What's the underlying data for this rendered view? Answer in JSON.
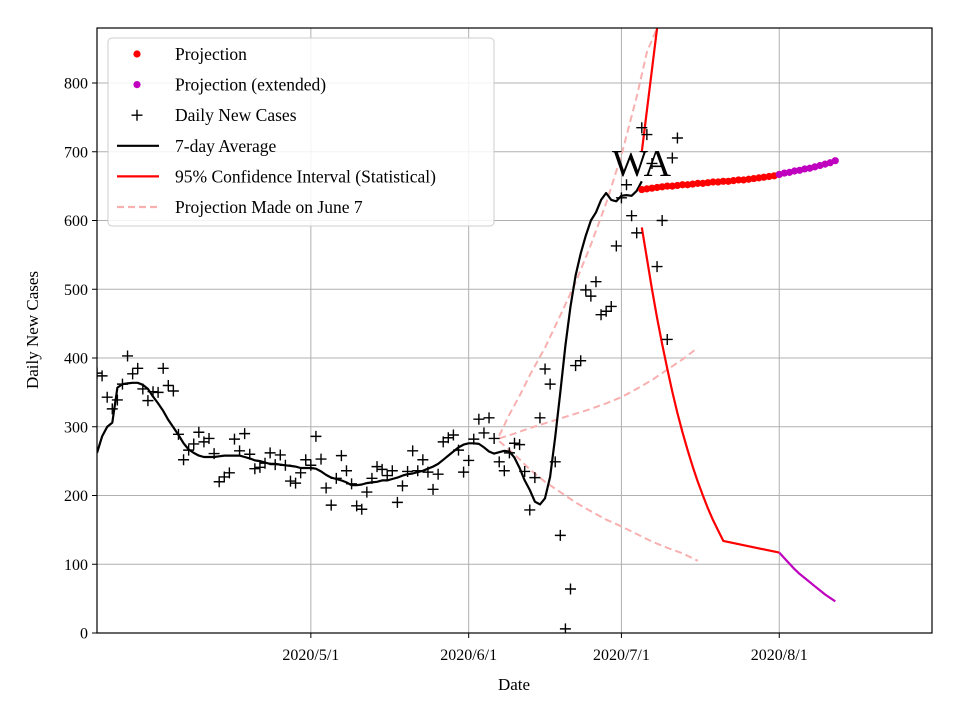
{
  "chart_data": {
    "type": "line",
    "title": "",
    "annotation": "WA",
    "xlabel": "Date",
    "ylabel": "Daily New Cases",
    "ylim": [
      0,
      880
    ],
    "x_start": "2020-03-20",
    "x_end": "2020-08-31",
    "xticks": [
      {
        "day": 42,
        "label": "2020/5/1"
      },
      {
        "day": 73,
        "label": "2020/6/1"
      },
      {
        "day": 103,
        "label": "2020/7/1"
      },
      {
        "day": 134,
        "label": "2020/8/1"
      }
    ],
    "yticks": [
      0,
      100,
      200,
      300,
      400,
      500,
      600,
      700,
      800
    ],
    "grid": true,
    "legend_position": "top-left",
    "legend": [
      {
        "key": "projection",
        "label": "Projection",
        "marker": "dot",
        "color": "#ff0000"
      },
      {
        "key": "projection_ext",
        "label": "Projection (extended)",
        "marker": "dot",
        "color": "#bf00bf"
      },
      {
        "key": "daily",
        "label": "Daily New Cases",
        "marker": "plus",
        "color": "#000000"
      },
      {
        "key": "avg",
        "label": "7-day Average",
        "marker": "line",
        "color": "#000000"
      },
      {
        "key": "ci",
        "label": "95% Confidence Interval (Statistical)",
        "marker": "line",
        "color": "#ff0000"
      },
      {
        "key": "june7",
        "label": "Projection Made on June 7",
        "marker": "dash",
        "color": "#f8b0b0"
      }
    ],
    "daily_new_cases": [
      [
        0,
        378
      ],
      [
        1,
        374
      ],
      [
        2,
        343
      ],
      [
        3,
        326
      ],
      [
        4,
        339
      ],
      [
        5,
        362
      ],
      [
        6,
        403
      ],
      [
        7,
        377
      ],
      [
        8,
        385
      ],
      [
        9,
        355
      ],
      [
        10,
        338
      ],
      [
        11,
        351
      ],
      [
        12,
        350
      ],
      [
        13,
        385
      ],
      [
        14,
        360
      ],
      [
        15,
        352
      ],
      [
        16,
        289
      ],
      [
        17,
        252
      ],
      [
        18,
        266
      ],
      [
        19,
        275
      ],
      [
        20,
        292
      ],
      [
        21,
        278
      ],
      [
        22,
        283
      ],
      [
        23,
        261
      ],
      [
        24,
        220
      ],
      [
        25,
        227
      ],
      [
        26,
        233
      ],
      [
        27,
        282
      ],
      [
        28,
        265
      ],
      [
        29,
        290
      ],
      [
        30,
        260
      ],
      [
        31,
        239
      ],
      [
        32,
        241
      ],
      [
        33,
        247
      ],
      [
        34,
        262
      ],
      [
        35,
        245
      ],
      [
        36,
        259
      ],
      [
        37,
        244
      ],
      [
        38,
        221
      ],
      [
        39,
        218
      ],
      [
        40,
        233
      ],
      [
        41,
        252
      ],
      [
        42,
        244
      ],
      [
        43,
        286
      ],
      [
        44,
        253
      ],
      [
        45,
        211
      ],
      [
        46,
        186
      ],
      [
        47,
        225
      ],
      [
        48,
        258
      ],
      [
        49,
        236
      ],
      [
        50,
        217
      ],
      [
        51,
        185
      ],
      [
        52,
        180
      ],
      [
        53,
        205
      ],
      [
        54,
        225
      ],
      [
        55,
        242
      ],
      [
        56,
        238
      ],
      [
        57,
        229
      ],
      [
        58,
        236
      ],
      [
        59,
        190
      ],
      [
        60,
        214
      ],
      [
        61,
        235
      ],
      [
        62,
        265
      ],
      [
        63,
        236
      ],
      [
        64,
        252
      ],
      [
        65,
        234
      ],
      [
        66,
        209
      ],
      [
        67,
        231
      ],
      [
        68,
        278
      ],
      [
        69,
        284
      ],
      [
        70,
        288
      ],
      [
        71,
        266
      ],
      [
        72,
        234
      ],
      [
        73,
        251
      ],
      [
        74,
        282
      ],
      [
        75,
        311
      ],
      [
        76,
        291
      ],
      [
        77,
        313
      ],
      [
        78,
        283
      ],
      [
        79,
        249
      ],
      [
        80,
        236
      ],
      [
        81,
        262
      ],
      [
        82,
        276
      ],
      [
        83,
        274
      ],
      [
        84,
        235
      ],
      [
        85,
        179
      ],
      [
        86,
        226
      ],
      [
        87,
        313
      ],
      [
        88,
        384
      ],
      [
        89,
        362
      ],
      [
        90,
        249
      ],
      [
        91,
        142
      ],
      [
        92,
        6
      ],
      [
        93,
        64
      ],
      [
        94,
        389
      ],
      [
        95,
        396
      ],
      [
        96,
        499
      ],
      [
        97,
        490
      ],
      [
        98,
        511
      ],
      [
        99,
        463
      ],
      [
        100,
        468
      ],
      [
        101,
        475
      ],
      [
        102,
        563
      ],
      [
        103,
        633
      ],
      [
        104,
        652
      ],
      [
        105,
        607
      ],
      [
        106,
        582
      ],
      [
        107,
        735
      ],
      [
        108,
        725
      ],
      [
        109,
        683
      ],
      [
        110,
        533
      ],
      [
        111,
        600
      ],
      [
        112,
        427
      ],
      [
        113,
        691
      ],
      [
        114,
        720
      ]
    ],
    "seven_day_average": [
      [
        0,
        262
      ],
      [
        1,
        286
      ],
      [
        2,
        300
      ],
      [
        3,
        306
      ],
      [
        4,
        357
      ],
      [
        5,
        362
      ],
      [
        6,
        363
      ],
      [
        7,
        364
      ],
      [
        8,
        364
      ],
      [
        9,
        361
      ],
      [
        10,
        355
      ],
      [
        11,
        344
      ],
      [
        12,
        334
      ],
      [
        13,
        323
      ],
      [
        14,
        310
      ],
      [
        15,
        299
      ],
      [
        16,
        288
      ],
      [
        17,
        276
      ],
      [
        18,
        267
      ],
      [
        19,
        262
      ],
      [
        20,
        258
      ],
      [
        21,
        256
      ],
      [
        22,
        256
      ],
      [
        23,
        256
      ],
      [
        24,
        257
      ],
      [
        25,
        258
      ],
      [
        26,
        258
      ],
      [
        27,
        258
      ],
      [
        28,
        258
      ],
      [
        29,
        256
      ],
      [
        30,
        254
      ],
      [
        31,
        251
      ],
      [
        32,
        250
      ],
      [
        33,
        248
      ],
      [
        34,
        246
      ],
      [
        35,
        246
      ],
      [
        36,
        245
      ],
      [
        37,
        244
      ],
      [
        38,
        243
      ],
      [
        39,
        242
      ],
      [
        40,
        240
      ],
      [
        41,
        240
      ],
      [
        42,
        240
      ],
      [
        43,
        239
      ],
      [
        44,
        235
      ],
      [
        45,
        230
      ],
      [
        46,
        226
      ],
      [
        47,
        224
      ],
      [
        48,
        222
      ],
      [
        49,
        219
      ],
      [
        50,
        215
      ],
      [
        51,
        215
      ],
      [
        52,
        216
      ],
      [
        53,
        218
      ],
      [
        54,
        219
      ],
      [
        55,
        220
      ],
      [
        56,
        222
      ],
      [
        57,
        222
      ],
      [
        58,
        224
      ],
      [
        59,
        226
      ],
      [
        60,
        229
      ],
      [
        61,
        231
      ],
      [
        62,
        232
      ],
      [
        63,
        234
      ],
      [
        64,
        236
      ],
      [
        65,
        239
      ],
      [
        66,
        242
      ],
      [
        67,
        246
      ],
      [
        68,
        252
      ],
      [
        69,
        258
      ],
      [
        70,
        264
      ],
      [
        71,
        270
      ],
      [
        72,
        274
      ],
      [
        73,
        276
      ],
      [
        74,
        276
      ],
      [
        75,
        275
      ],
      [
        76,
        270
      ],
      [
        77,
        264
      ],
      [
        78,
        261
      ],
      [
        79,
        263
      ],
      [
        80,
        265
      ],
      [
        81,
        264
      ],
      [
        82,
        255
      ],
      [
        83,
        240
      ],
      [
        84,
        222
      ],
      [
        85,
        208
      ],
      [
        86,
        191
      ],
      [
        87,
        187
      ],
      [
        88,
        196
      ],
      [
        89,
        227
      ],
      [
        90,
        285
      ],
      [
        91,
        350
      ],
      [
        92,
        418
      ],
      [
        93,
        475
      ],
      [
        94,
        520
      ],
      [
        95,
        552
      ],
      [
        96,
        578
      ],
      [
        97,
        600
      ],
      [
        98,
        612
      ],
      [
        99,
        630
      ],
      [
        100,
        640
      ],
      [
        101,
        630
      ],
      [
        102,
        628
      ],
      [
        103,
        636
      ],
      [
        104,
        637
      ],
      [
        105,
        636
      ],
      [
        106,
        643
      ],
      [
        107,
        657
      ]
    ],
    "projection": {
      "x": [
        107,
        108,
        109,
        110,
        111,
        112,
        113,
        114,
        115,
        116,
        117,
        118,
        119,
        120,
        121,
        122,
        123,
        124,
        125,
        126,
        127,
        128,
        129,
        130,
        131,
        132,
        133,
        134
      ],
      "y": [
        645,
        646,
        647,
        648,
        649,
        650,
        650,
        651,
        652,
        652,
        653,
        654,
        654,
        655,
        656,
        656,
        657,
        657,
        658,
        659,
        659,
        660,
        661,
        662,
        663,
        664,
        665,
        667
      ]
    },
    "projection_extended": {
      "x": [
        134,
        135,
        136,
        137,
        138,
        139,
        140,
        141,
        142,
        143,
        144,
        145
      ],
      "y": [
        667,
        669,
        670,
        672,
        673,
        675,
        676,
        678,
        680,
        682,
        684,
        687
      ]
    },
    "confidence_interval": {
      "upper": [
        [
          107,
          700
        ],
        [
          108,
          760
        ],
        [
          109,
          820
        ],
        [
          110,
          880
        ]
      ],
      "lower": [
        [
          107,
          590
        ],
        [
          108,
          545
        ],
        [
          109,
          500
        ],
        [
          110,
          458
        ],
        [
          111,
          420
        ],
        [
          112,
          385
        ],
        [
          113,
          351
        ],
        [
          114,
          320
        ],
        [
          115,
          292
        ],
        [
          116,
          266
        ],
        [
          117,
          242
        ],
        [
          118,
          220
        ],
        [
          119,
          200
        ],
        [
          120,
          181
        ],
        [
          121,
          164
        ],
        [
          122,
          149
        ],
        [
          123,
          134
        ],
        [
          134,
          117
        ]
      ]
    },
    "confidence_interval_extended": {
      "lower": [
        [
          134,
          117
        ],
        [
          135,
          109
        ],
        [
          136,
          101
        ],
        [
          137,
          93
        ],
        [
          138,
          86
        ],
        [
          139,
          80
        ],
        [
          140,
          74
        ],
        [
          141,
          68
        ],
        [
          142,
          62
        ],
        [
          143,
          56
        ],
        [
          144,
          51
        ],
        [
          145,
          46
        ]
      ]
    },
    "projection_june7": {
      "upper": [
        [
          79,
          287
        ],
        [
          81,
          318
        ],
        [
          83,
          345
        ],
        [
          85,
          375
        ],
        [
          88,
          415
        ],
        [
          91,
          462
        ],
        [
          94,
          510
        ],
        [
          97,
          565
        ],
        [
          100,
          625
        ],
        [
          103,
          695
        ],
        [
          106,
          780
        ],
        [
          108,
          845
        ],
        [
          110,
          880
        ]
      ],
      "center": [
        [
          79,
          283
        ],
        [
          82,
          290
        ],
        [
          85,
          298
        ],
        [
          88,
          305
        ],
        [
          91,
          312
        ],
        [
          94,
          319
        ],
        [
          97,
          326
        ],
        [
          100,
          334
        ],
        [
          103,
          343
        ],
        [
          106,
          355
        ],
        [
          109,
          368
        ],
        [
          112,
          383
        ],
        [
          115,
          398
        ],
        [
          118,
          415
        ]
      ],
      "lower": [
        [
          79,
          279
        ],
        [
          82,
          260
        ],
        [
          85,
          238
        ],
        [
          88,
          220
        ],
        [
          91,
          205
        ],
        [
          94,
          190
        ],
        [
          97,
          177
        ],
        [
          100,
          165
        ],
        [
          103,
          155
        ],
        [
          106,
          144
        ],
        [
          109,
          133
        ],
        [
          112,
          124
        ],
        [
          115,
          116
        ],
        [
          118,
          105
        ]
      ]
    }
  }
}
